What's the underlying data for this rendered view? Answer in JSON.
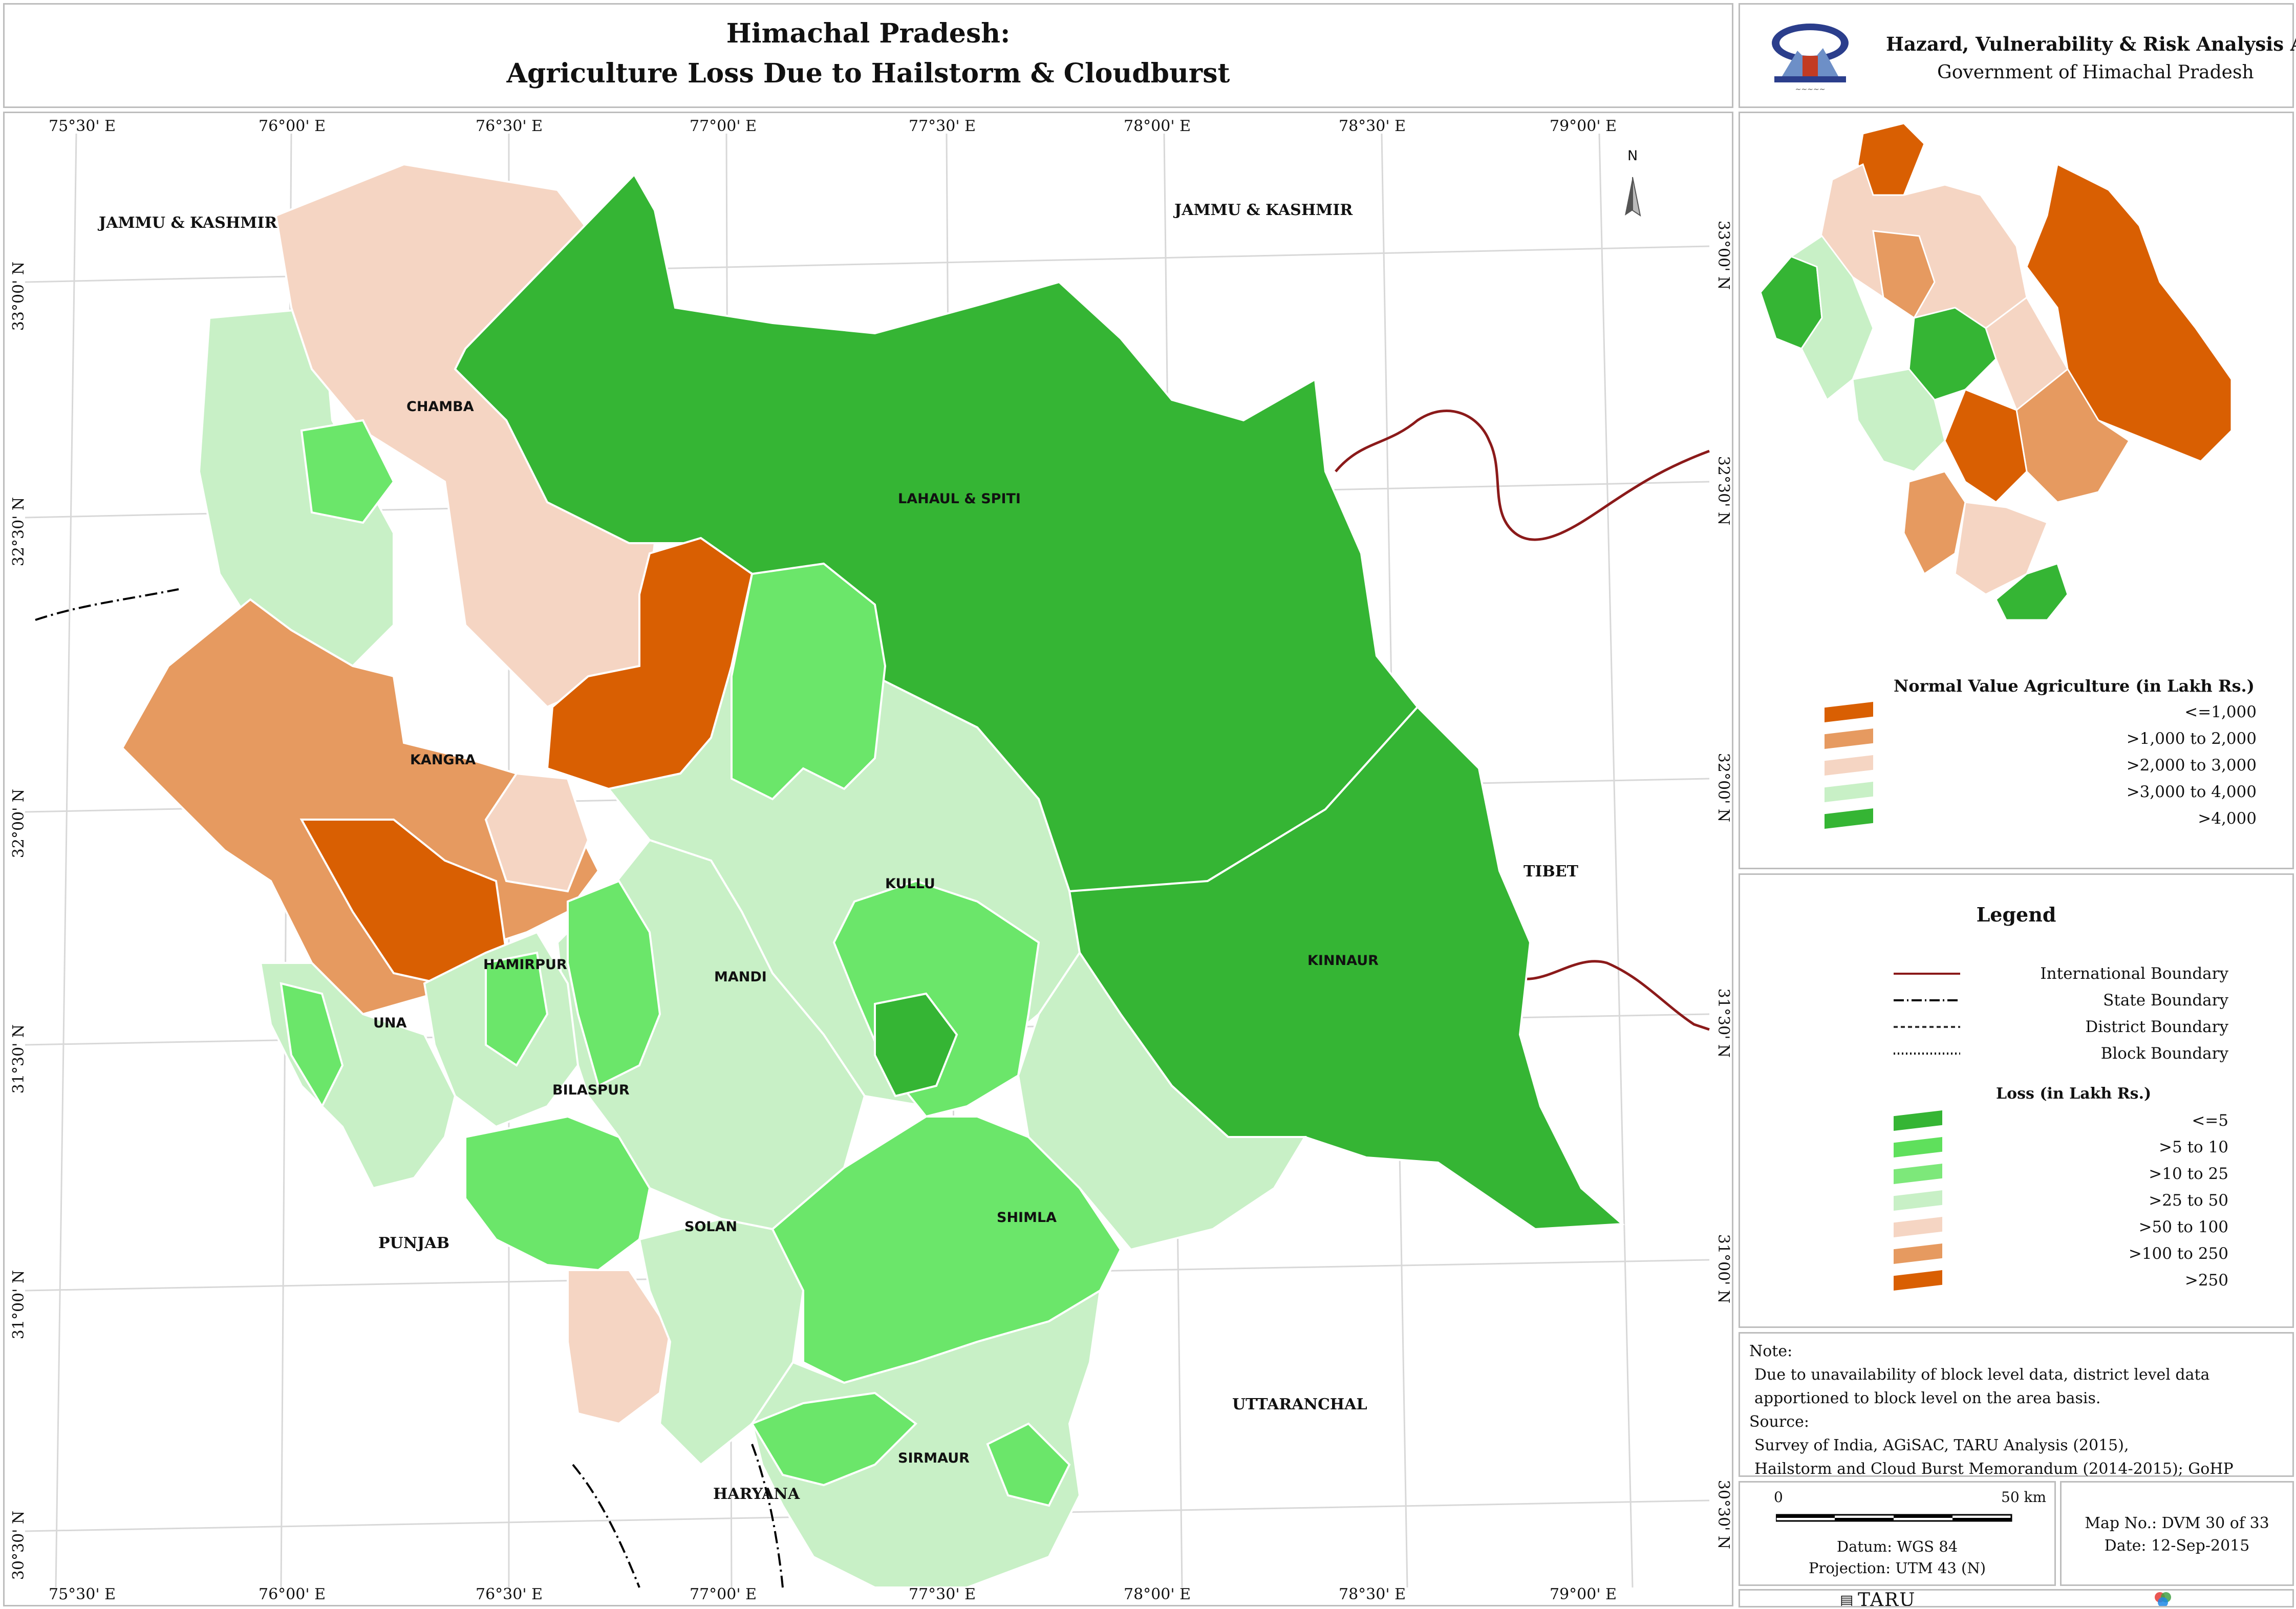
{
  "title": {
    "line1": "Himachal Pradesh:",
    "line2": "Agriculture Loss Due to Hailstorm & Cloudburst"
  },
  "header": {
    "atlas_title": "Hazard, Vulnerability & Risk Analysis Atlas",
    "government": "Government of Himachal Pradesh"
  },
  "graticule": {
    "top": [
      "75°30' E",
      "76°00' E",
      "76°30' E",
      "77°00' E",
      "77°30' E",
      "78°00' E",
      "78°30' E",
      "79°00' E"
    ],
    "bottom": [
      "75°30' E",
      "76°00' E",
      "76°30' E",
      "77°00' E",
      "77°30' E",
      "78°00' E",
      "78°30' E",
      "79°00' E"
    ],
    "left": [
      "33°00' N",
      "32°30' N",
      "32°00' N",
      "31°30' N",
      "31°00' N",
      "30°30' N"
    ],
    "right": [
      "33°00' N",
      "32°30' N",
      "32°00' N",
      "31°30' N",
      "31°00' N",
      "30°30' N"
    ]
  },
  "districts": {
    "chamba": "CHAMBA",
    "lahaul": "LAHAUL & SPITI",
    "kangra": "KANGRA",
    "kullu": "KULLU",
    "kinnaur": "KINNAUR",
    "hamirpur": "HAMIRPUR",
    "mandi": "MANDI",
    "una": "UNA",
    "bilaspur": "BILASPUR",
    "solan": "SOLAN",
    "shimla": "SHIMLA",
    "sirmaur": "SIRMAUR"
  },
  "neighbours": {
    "jk_west": "JAMMU & KASHMIR",
    "jk_east": "JAMMU & KASHMIR",
    "tibet": "TIBET",
    "punjab": "PUNJAB",
    "uttaranchal": "UTTARANCHAL",
    "haryana": "HARYANA"
  },
  "north_label": "N",
  "normal_value_legend": {
    "title": "Normal Value Agriculture (in Lakh Rs.)",
    "classes": [
      {
        "label": "<=1,000",
        "color": "#d95f02"
      },
      {
        "label": ">1,000 to 2,000",
        "color": "#e69a60"
      },
      {
        "label": ">2,000 to 3,000",
        "color": "#f5d5c3"
      },
      {
        "label": ">3,000 to 4,000",
        "color": "#c8f0c6"
      },
      {
        "label": ">4,000",
        "color": "#35b534"
      }
    ]
  },
  "legend": {
    "title": "Legend",
    "lines": [
      {
        "label": "International Boundary",
        "style": "solid",
        "color": "#8b1a1a"
      },
      {
        "label": "State Boundary",
        "style": "dash-dot",
        "color": "#000000"
      },
      {
        "label": "District Boundary",
        "style": "dashed",
        "color": "#333333"
      },
      {
        "label": "Block Boundary",
        "style": "dotted",
        "color": "#000000"
      }
    ],
    "loss_title": "Loss (in Lakh Rs.)",
    "loss_classes": [
      {
        "label": "<=5",
        "color": "#35b534"
      },
      {
        "label": ">5 to 10",
        "color": "#5fe05c"
      },
      {
        "label": ">10 to 25",
        "color": "#7de87a"
      },
      {
        "label": ">25 to 50",
        "color": "#c8f0c6"
      },
      {
        "label": ">50 to 100",
        "color": "#f5d5c3"
      },
      {
        "label": ">100 to 250",
        "color": "#e69a60"
      },
      {
        "label": ">250",
        "color": "#d95f02"
      }
    ]
  },
  "note": {
    "heading": "Note:",
    "text": "Due to unavailability of block level data, district level data apportioned to block level on the area basis.",
    "source_heading": "Source:",
    "source_line1": "Survey of India, AGiSAC, TARU Analysis (2015),",
    "source_line2": "Hailstorm and Cloud Burst Memorandum (2014-2015); GoHP"
  },
  "scale": {
    "start": "0",
    "end": "50 km",
    "datum": "Datum: WGS 84",
    "projection": "Projection: UTM 43 (N)"
  },
  "map_info": {
    "map_no": "Map No.: DVM 30 of 33",
    "date": "Date: 12-Sep-2015"
  },
  "footer": {
    "logo_text": "TARU"
  }
}
